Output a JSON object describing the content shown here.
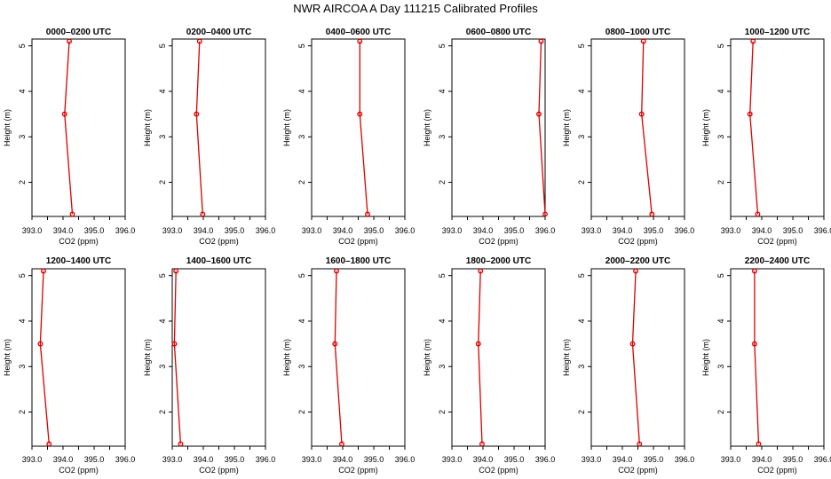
{
  "title": "NWR AIRCOA A  Day 111215  Calibrated Profiles",
  "colors": {
    "series": "#dd0000",
    "axis": "#000000",
    "background": "#ffffff"
  },
  "chart_data": [
    {
      "type": "line",
      "title": "0000–0200 UTC",
      "xlabel": "CO2 (ppm)",
      "ylabel": "Height (m)",
      "xlim": [
        393.0,
        396.0
      ],
      "ylim": [
        1.25,
        5.15
      ],
      "xticks": [
        "393.0",
        "394.0",
        "395.0",
        "396.0"
      ],
      "yticks": [
        "2",
        "3",
        "4",
        "5"
      ],
      "points": [
        {
          "x": 394.2,
          "y": 5.1
        },
        {
          "x": 394.05,
          "y": 3.5
        },
        {
          "x": 394.3,
          "y": 1.3
        }
      ]
    },
    {
      "type": "line",
      "title": "0200–0400 UTC",
      "xlabel": "CO2 (ppm)",
      "ylabel": "Height (m)",
      "xlim": [
        393.0,
        396.0
      ],
      "ylim": [
        1.25,
        5.15
      ],
      "xticks": [
        "393.0",
        "394.0",
        "395.0",
        "396.0"
      ],
      "yticks": [
        "2",
        "3",
        "4",
        "5"
      ],
      "points": [
        {
          "x": 393.88,
          "y": 5.1
        },
        {
          "x": 393.78,
          "y": 3.5
        },
        {
          "x": 393.98,
          "y": 1.3
        }
      ]
    },
    {
      "type": "line",
      "title": "0400–0600 UTC",
      "xlabel": "CO2 (ppm)",
      "ylabel": "Height (m)",
      "xlim": [
        393.0,
        396.0
      ],
      "ylim": [
        1.25,
        5.15
      ],
      "xticks": [
        "393.0",
        "394.0",
        "395.0",
        "396.0"
      ],
      "yticks": [
        "2",
        "3",
        "4",
        "5"
      ],
      "points": [
        {
          "x": 394.55,
          "y": 5.1
        },
        {
          "x": 394.55,
          "y": 3.5
        },
        {
          "x": 394.8,
          "y": 1.3
        }
      ]
    },
    {
      "type": "line",
      "title": "0600–0800 UTC",
      "xlabel": "CO2 (ppm)",
      "ylabel": "Height (m)",
      "xlim": [
        393.0,
        396.0
      ],
      "ylim": [
        1.25,
        5.15
      ],
      "xticks": [
        "393.0",
        "394.0",
        "395.0",
        "396.0"
      ],
      "yticks": [
        "2",
        "3",
        "4",
        "5"
      ],
      "points": [
        {
          "x": 395.87,
          "y": 5.1
        },
        {
          "x": 395.8,
          "y": 3.5
        },
        {
          "x": 396.0,
          "y": 1.3
        }
      ]
    },
    {
      "type": "line",
      "title": "0800–1000 UTC",
      "xlabel": "CO2 (ppm)",
      "ylabel": "Height (m)",
      "xlim": [
        393.0,
        396.0
      ],
      "ylim": [
        1.25,
        5.15
      ],
      "xticks": [
        "393.0",
        "394.0",
        "395.0",
        "396.0"
      ],
      "yticks": [
        "2",
        "3",
        "4",
        "5"
      ],
      "points": [
        {
          "x": 394.68,
          "y": 5.1
        },
        {
          "x": 394.62,
          "y": 3.5
        },
        {
          "x": 394.95,
          "y": 1.3
        }
      ]
    },
    {
      "type": "line",
      "title": "1000–1200 UTC",
      "xlabel": "CO2 (ppm)",
      "ylabel": "Height (m)",
      "xlim": [
        393.0,
        396.0
      ],
      "ylim": [
        1.25,
        5.15
      ],
      "xticks": [
        "393.0",
        "394.0",
        "395.0",
        "396.0"
      ],
      "yticks": [
        "2",
        "3",
        "4",
        "5"
      ],
      "points": [
        {
          "x": 393.72,
          "y": 5.1
        },
        {
          "x": 393.62,
          "y": 3.5
        },
        {
          "x": 393.87,
          "y": 1.3
        }
      ]
    },
    {
      "type": "line",
      "title": "1200–1400 UTC",
      "xlabel": "CO2 (ppm)",
      "ylabel": "Height (m)",
      "xlim": [
        393.0,
        396.0
      ],
      "ylim": [
        1.25,
        5.15
      ],
      "xticks": [
        "393.0",
        "394.0",
        "395.0",
        "396.0"
      ],
      "yticks": [
        "2",
        "3",
        "4",
        "5"
      ],
      "points": [
        {
          "x": 393.37,
          "y": 5.1
        },
        {
          "x": 393.27,
          "y": 3.5
        },
        {
          "x": 393.55,
          "y": 1.3
        }
      ]
    },
    {
      "type": "line",
      "title": "1400–1600 UTC",
      "xlabel": "CO2 (ppm)",
      "ylabel": "Height (m)",
      "xlim": [
        393.0,
        396.0
      ],
      "ylim": [
        1.25,
        5.15
      ],
      "xticks": [
        "393.0",
        "394.0",
        "395.0",
        "396.0"
      ],
      "yticks": [
        "2",
        "3",
        "4",
        "5"
      ],
      "points": [
        {
          "x": 393.12,
          "y": 5.1
        },
        {
          "x": 393.07,
          "y": 3.5
        },
        {
          "x": 393.27,
          "y": 1.3
        }
      ]
    },
    {
      "type": "line",
      "title": "1600–1800 UTC",
      "xlabel": "CO2 (ppm)",
      "ylabel": "Height (m)",
      "xlim": [
        393.0,
        396.0
      ],
      "ylim": [
        1.25,
        5.15
      ],
      "xticks": [
        "393.0",
        "394.0",
        "395.0",
        "396.0"
      ],
      "yticks": [
        "2",
        "3",
        "4",
        "5"
      ],
      "points": [
        {
          "x": 393.8,
          "y": 5.1
        },
        {
          "x": 393.75,
          "y": 3.5
        },
        {
          "x": 393.97,
          "y": 1.3
        }
      ]
    },
    {
      "type": "line",
      "title": "1800–2000 UTC",
      "xlabel": "CO2 (ppm)",
      "ylabel": "Height (m)",
      "xlim": [
        393.0,
        396.0
      ],
      "ylim": [
        1.25,
        5.15
      ],
      "xticks": [
        "393.0",
        "394.0",
        "395.0",
        "396.0"
      ],
      "yticks": [
        "2",
        "3",
        "4",
        "5"
      ],
      "points": [
        {
          "x": 393.92,
          "y": 5.1
        },
        {
          "x": 393.85,
          "y": 3.5
        },
        {
          "x": 393.97,
          "y": 1.3
        }
      ]
    },
    {
      "type": "line",
      "title": "2000–2200 UTC",
      "xlabel": "CO2 (ppm)",
      "ylabel": "Height (m)",
      "xlim": [
        393.0,
        396.0
      ],
      "ylim": [
        1.25,
        5.15
      ],
      "xticks": [
        "393.0",
        "394.0",
        "395.0",
        "396.0"
      ],
      "yticks": [
        "2",
        "3",
        "4",
        "5"
      ],
      "points": [
        {
          "x": 394.43,
          "y": 5.1
        },
        {
          "x": 394.33,
          "y": 3.5
        },
        {
          "x": 394.55,
          "y": 1.3
        }
      ]
    },
    {
      "type": "line",
      "title": "2200–2400 UTC",
      "xlabel": "CO2 (ppm)",
      "ylabel": "Height (m)",
      "xlim": [
        393.0,
        396.0
      ],
      "ylim": [
        1.25,
        5.15
      ],
      "xticks": [
        "393.0",
        "394.0",
        "395.0",
        "396.0"
      ],
      "yticks": [
        "2",
        "3",
        "4",
        "5"
      ],
      "points": [
        {
          "x": 393.77,
          "y": 5.1
        },
        {
          "x": 393.77,
          "y": 3.5
        },
        {
          "x": 393.9,
          "y": 1.3
        }
      ]
    }
  ]
}
